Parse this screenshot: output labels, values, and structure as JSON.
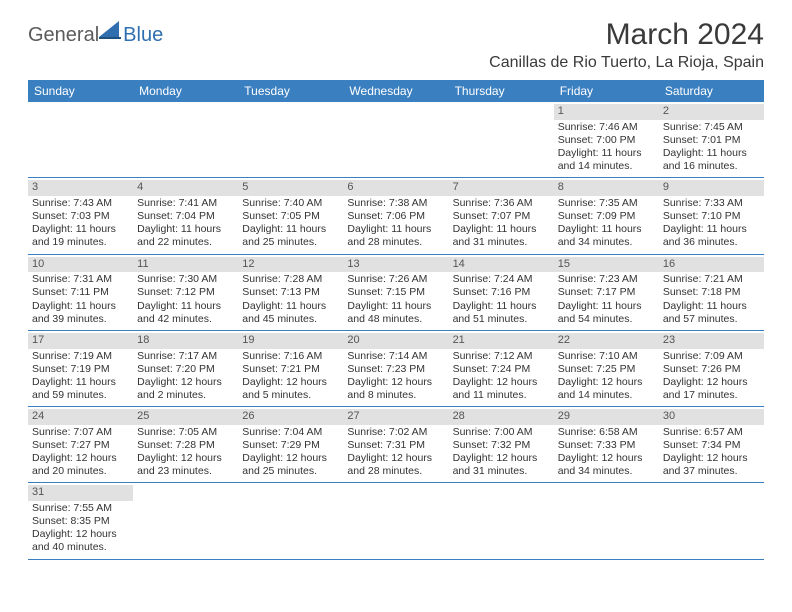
{
  "logo": {
    "part1": "General",
    "part2": "Blue"
  },
  "title": "March 2024",
  "location": "Canillas de Rio Tuerto, La Rioja, Spain",
  "colors": {
    "header_bg": "#3a7fc0",
    "header_text": "#ffffff",
    "day_band": "#e1e1e1",
    "row_border": "#3a7fc0",
    "text": "#333333",
    "logo_gray": "#5b5b5b",
    "logo_blue": "#2f6fb0"
  },
  "weekdays": [
    "Sunday",
    "Monday",
    "Tuesday",
    "Wednesday",
    "Thursday",
    "Friday",
    "Saturday"
  ],
  "weeks": [
    [
      {
        "empty": true
      },
      {
        "empty": true
      },
      {
        "empty": true
      },
      {
        "empty": true
      },
      {
        "empty": true
      },
      {
        "n": "1",
        "sunrise": "Sunrise: 7:46 AM",
        "sunset": "Sunset: 7:00 PM",
        "daylight": "Daylight: 11 hours and 14 minutes."
      },
      {
        "n": "2",
        "sunrise": "Sunrise: 7:45 AM",
        "sunset": "Sunset: 7:01 PM",
        "daylight": "Daylight: 11 hours and 16 minutes."
      }
    ],
    [
      {
        "n": "3",
        "sunrise": "Sunrise: 7:43 AM",
        "sunset": "Sunset: 7:03 PM",
        "daylight": "Daylight: 11 hours and 19 minutes."
      },
      {
        "n": "4",
        "sunrise": "Sunrise: 7:41 AM",
        "sunset": "Sunset: 7:04 PM",
        "daylight": "Daylight: 11 hours and 22 minutes."
      },
      {
        "n": "5",
        "sunrise": "Sunrise: 7:40 AM",
        "sunset": "Sunset: 7:05 PM",
        "daylight": "Daylight: 11 hours and 25 minutes."
      },
      {
        "n": "6",
        "sunrise": "Sunrise: 7:38 AM",
        "sunset": "Sunset: 7:06 PM",
        "daylight": "Daylight: 11 hours and 28 minutes."
      },
      {
        "n": "7",
        "sunrise": "Sunrise: 7:36 AM",
        "sunset": "Sunset: 7:07 PM",
        "daylight": "Daylight: 11 hours and 31 minutes."
      },
      {
        "n": "8",
        "sunrise": "Sunrise: 7:35 AM",
        "sunset": "Sunset: 7:09 PM",
        "daylight": "Daylight: 11 hours and 34 minutes."
      },
      {
        "n": "9",
        "sunrise": "Sunrise: 7:33 AM",
        "sunset": "Sunset: 7:10 PM",
        "daylight": "Daylight: 11 hours and 36 minutes."
      }
    ],
    [
      {
        "n": "10",
        "sunrise": "Sunrise: 7:31 AM",
        "sunset": "Sunset: 7:11 PM",
        "daylight": "Daylight: 11 hours and 39 minutes."
      },
      {
        "n": "11",
        "sunrise": "Sunrise: 7:30 AM",
        "sunset": "Sunset: 7:12 PM",
        "daylight": "Daylight: 11 hours and 42 minutes."
      },
      {
        "n": "12",
        "sunrise": "Sunrise: 7:28 AM",
        "sunset": "Sunset: 7:13 PM",
        "daylight": "Daylight: 11 hours and 45 minutes."
      },
      {
        "n": "13",
        "sunrise": "Sunrise: 7:26 AM",
        "sunset": "Sunset: 7:15 PM",
        "daylight": "Daylight: 11 hours and 48 minutes."
      },
      {
        "n": "14",
        "sunrise": "Sunrise: 7:24 AM",
        "sunset": "Sunset: 7:16 PM",
        "daylight": "Daylight: 11 hours and 51 minutes."
      },
      {
        "n": "15",
        "sunrise": "Sunrise: 7:23 AM",
        "sunset": "Sunset: 7:17 PM",
        "daylight": "Daylight: 11 hours and 54 minutes."
      },
      {
        "n": "16",
        "sunrise": "Sunrise: 7:21 AM",
        "sunset": "Sunset: 7:18 PM",
        "daylight": "Daylight: 11 hours and 57 minutes."
      }
    ],
    [
      {
        "n": "17",
        "sunrise": "Sunrise: 7:19 AM",
        "sunset": "Sunset: 7:19 PM",
        "daylight": "Daylight: 11 hours and 59 minutes."
      },
      {
        "n": "18",
        "sunrise": "Sunrise: 7:17 AM",
        "sunset": "Sunset: 7:20 PM",
        "daylight": "Daylight: 12 hours and 2 minutes."
      },
      {
        "n": "19",
        "sunrise": "Sunrise: 7:16 AM",
        "sunset": "Sunset: 7:21 PM",
        "daylight": "Daylight: 12 hours and 5 minutes."
      },
      {
        "n": "20",
        "sunrise": "Sunrise: 7:14 AM",
        "sunset": "Sunset: 7:23 PM",
        "daylight": "Daylight: 12 hours and 8 minutes."
      },
      {
        "n": "21",
        "sunrise": "Sunrise: 7:12 AM",
        "sunset": "Sunset: 7:24 PM",
        "daylight": "Daylight: 12 hours and 11 minutes."
      },
      {
        "n": "22",
        "sunrise": "Sunrise: 7:10 AM",
        "sunset": "Sunset: 7:25 PM",
        "daylight": "Daylight: 12 hours and 14 minutes."
      },
      {
        "n": "23",
        "sunrise": "Sunrise: 7:09 AM",
        "sunset": "Sunset: 7:26 PM",
        "daylight": "Daylight: 12 hours and 17 minutes."
      }
    ],
    [
      {
        "n": "24",
        "sunrise": "Sunrise: 7:07 AM",
        "sunset": "Sunset: 7:27 PM",
        "daylight": "Daylight: 12 hours and 20 minutes."
      },
      {
        "n": "25",
        "sunrise": "Sunrise: 7:05 AM",
        "sunset": "Sunset: 7:28 PM",
        "daylight": "Daylight: 12 hours and 23 minutes."
      },
      {
        "n": "26",
        "sunrise": "Sunrise: 7:04 AM",
        "sunset": "Sunset: 7:29 PM",
        "daylight": "Daylight: 12 hours and 25 minutes."
      },
      {
        "n": "27",
        "sunrise": "Sunrise: 7:02 AM",
        "sunset": "Sunset: 7:31 PM",
        "daylight": "Daylight: 12 hours and 28 minutes."
      },
      {
        "n": "28",
        "sunrise": "Sunrise: 7:00 AM",
        "sunset": "Sunset: 7:32 PM",
        "daylight": "Daylight: 12 hours and 31 minutes."
      },
      {
        "n": "29",
        "sunrise": "Sunrise: 6:58 AM",
        "sunset": "Sunset: 7:33 PM",
        "daylight": "Daylight: 12 hours and 34 minutes."
      },
      {
        "n": "30",
        "sunrise": "Sunrise: 6:57 AM",
        "sunset": "Sunset: 7:34 PM",
        "daylight": "Daylight: 12 hours and 37 minutes."
      }
    ],
    [
      {
        "n": "31",
        "sunrise": "Sunrise: 7:55 AM",
        "sunset": "Sunset: 8:35 PM",
        "daylight": "Daylight: 12 hours and 40 minutes."
      },
      {
        "empty": true
      },
      {
        "empty": true
      },
      {
        "empty": true
      },
      {
        "empty": true
      },
      {
        "empty": true
      },
      {
        "empty": true
      }
    ]
  ]
}
